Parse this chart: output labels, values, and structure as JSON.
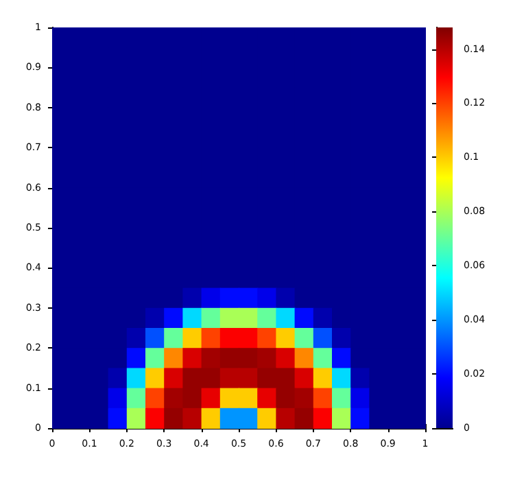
{
  "chart_data": {
    "type": "heatmap",
    "xlim": [
      0,
      1
    ],
    "ylim": [
      0,
      1
    ],
    "xticks": [
      0,
      0.1,
      0.2,
      0.3,
      0.4,
      0.5,
      0.6,
      0.7,
      0.8,
      0.9,
      1
    ],
    "yticks": [
      0,
      0.1,
      0.2,
      0.3,
      0.4,
      0.5,
      0.6,
      0.7,
      0.8,
      0.9,
      1
    ],
    "clim": [
      0,
      0.148
    ],
    "cticks": [
      0,
      0.02,
      0.04,
      0.06,
      0.08,
      0.1,
      0.12,
      0.14
    ],
    "cells": [
      [
        0,
        0,
        0,
        0,
        0,
        0,
        0,
        0,
        0,
        0,
        0,
        0,
        0,
        0,
        0,
        0,
        0,
        0,
        0,
        0
      ],
      [
        0,
        0,
        0,
        0,
        0,
        0,
        0,
        0,
        0,
        0,
        0,
        0,
        0,
        0,
        0,
        0,
        0,
        0,
        0,
        0
      ],
      [
        0,
        0,
        0,
        0,
        0,
        0,
        0,
        0,
        0,
        0,
        0,
        0,
        0,
        0,
        0,
        0,
        0,
        0,
        0,
        0
      ],
      [
        0,
        0,
        0,
        0,
        0,
        0,
        0,
        0,
        0,
        0,
        0,
        0,
        0,
        0,
        0,
        0,
        0,
        0,
        0,
        0
      ],
      [
        0,
        0,
        0,
        0,
        0,
        0,
        0,
        0,
        0,
        0,
        0,
        0,
        0,
        0,
        0,
        0,
        0,
        0,
        0,
        0
      ],
      [
        0,
        0,
        0,
        0,
        0,
        0,
        0,
        0,
        0,
        0,
        0,
        0,
        0,
        0,
        0,
        0,
        0,
        0,
        0,
        0
      ],
      [
        0,
        0,
        0,
        0,
        0,
        0,
        0,
        0,
        0,
        0,
        0,
        0,
        0,
        0,
        0,
        0,
        0,
        0,
        0,
        0
      ],
      [
        0,
        0,
        0,
        0,
        0,
        0,
        0,
        0,
        0,
        0,
        0,
        0,
        0,
        0,
        0,
        0,
        0,
        0,
        0,
        0
      ],
      [
        0,
        0,
        0,
        0,
        0,
        0,
        0,
        0,
        0,
        0,
        0,
        0,
        0,
        0,
        0,
        0,
        0,
        0,
        0,
        0
      ],
      [
        0,
        0,
        0,
        0,
        0,
        0,
        0,
        0,
        0,
        0,
        0,
        0,
        0,
        0,
        0,
        0,
        0,
        0,
        0,
        0
      ],
      [
        0,
        0,
        0,
        0,
        0,
        0,
        0,
        0,
        0,
        0,
        0,
        0,
        0,
        0,
        0,
        0,
        0,
        0,
        0,
        0
      ],
      [
        0,
        0,
        0,
        0,
        0,
        0,
        0,
        0,
        0,
        0,
        0,
        0,
        0,
        0,
        0,
        0,
        0,
        0,
        0,
        0
      ],
      [
        0,
        0,
        0,
        0,
        0,
        0,
        0,
        0,
        0,
        0,
        0,
        0,
        0,
        0,
        0,
        0,
        0,
        0,
        0,
        0
      ],
      [
        0,
        0,
        0,
        0,
        0,
        0,
        0,
        0.005,
        0.015,
        0.02,
        0.02,
        0.015,
        0.005,
        0,
        0,
        0,
        0,
        0,
        0,
        0
      ],
      [
        0,
        0,
        0,
        0,
        0,
        0.005,
        0.02,
        0.05,
        0.07,
        0.08,
        0.08,
        0.07,
        0.05,
        0.02,
        0.005,
        0,
        0,
        0,
        0,
        0
      ],
      [
        0,
        0,
        0,
        0,
        0.005,
        0.03,
        0.07,
        0.1,
        0.12,
        0.13,
        0.13,
        0.12,
        0.1,
        0.07,
        0.03,
        0.005,
        0,
        0,
        0,
        0
      ],
      [
        0,
        0,
        0,
        0,
        0.02,
        0.07,
        0.11,
        0.135,
        0.143,
        0.145,
        0.145,
        0.143,
        0.135,
        0.11,
        0.07,
        0.02,
        0,
        0,
        0,
        0
      ],
      [
        0,
        0,
        0,
        0.005,
        0.05,
        0.1,
        0.135,
        0.145,
        0.145,
        0.14,
        0.14,
        0.145,
        0.145,
        0.135,
        0.1,
        0.05,
        0.005,
        0,
        0,
        0
      ],
      [
        0,
        0,
        0,
        0.015,
        0.07,
        0.12,
        0.143,
        0.145,
        0.133,
        0.1,
        0.1,
        0.133,
        0.145,
        0.143,
        0.12,
        0.07,
        0.015,
        0,
        0,
        0
      ],
      [
        0,
        0,
        0,
        0.02,
        0.08,
        0.13,
        0.145,
        0.14,
        0.1,
        0.04,
        0.04,
        0.1,
        0.14,
        0.145,
        0.13,
        0.08,
        0.02,
        0,
        0,
        0
      ]
    ]
  }
}
